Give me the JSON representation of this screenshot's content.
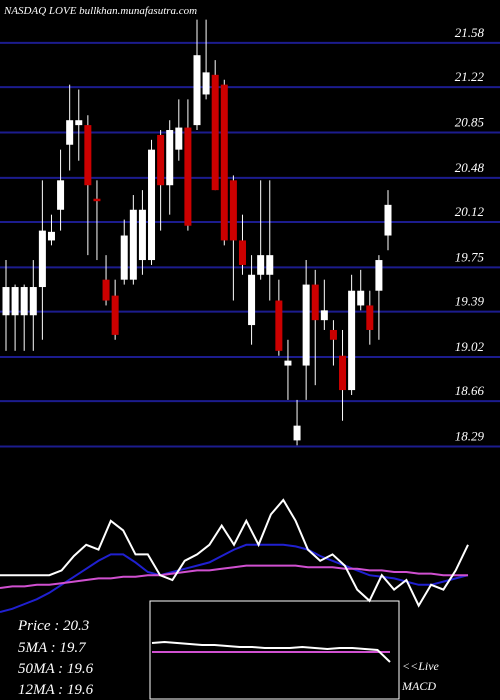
{
  "chart_data": {
    "type": "candlestick",
    "title": "NASDAQ LOVE bullkhan.munafasutra.com",
    "ylim": [
      18.18,
      21.93
    ],
    "yticks": [
      21.58,
      21.22,
      20.85,
      20.48,
      20.12,
      19.75,
      19.39,
      19.02,
      18.66,
      18.29
    ],
    "grid": true,
    "grid_color": "#1c1c8e",
    "up_color": "#ffffff",
    "down_color": "#cc0000",
    "open": [
      19.36,
      19.36,
      19.36,
      19.36,
      19.59,
      19.97,
      20.22,
      20.75,
      20.91,
      20.91,
      20.31,
      19.65,
      19.52,
      19.65,
      19.65,
      19.81,
      19.81,
      20.83,
      20.42,
      20.71,
      20.89,
      20.91,
      21.16,
      21.32,
      21.24,
      20.46,
      19.97,
      19.28,
      19.69,
      19.69,
      19.48,
      18.95,
      18.34,
      18.95,
      19.61,
      19.32,
      19.24,
      19.03,
      18.75,
      19.44,
      19.44,
      19.56,
      20.01
    ],
    "high": [
      19.81,
      19.61,
      19.61,
      19.81,
      20.46,
      20.18,
      20.71,
      21.24,
      21.2,
      20.99,
      20.46,
      19.85,
      19.65,
      20.14,
      20.34,
      20.38,
      20.79,
      20.87,
      20.95,
      21.12,
      21.12,
      21.77,
      21.77,
      21.44,
      21.28,
      20.5,
      20.18,
      19.85,
      20.46,
      20.46,
      19.65,
      19.16,
      18.67,
      19.81,
      19.73,
      19.65,
      19.32,
      19.24,
      19.69,
      19.73,
      19.56,
      19.85,
      20.38
    ],
    "low": [
      19.07,
      19.07,
      19.07,
      19.07,
      19.16,
      19.93,
      20.05,
      20.54,
      20.62,
      19.85,
      19.81,
      19.44,
      19.16,
      19.61,
      19.61,
      19.69,
      19.77,
      20.05,
      20.18,
      20.62,
      20.05,
      20.87,
      21.12,
      20.38,
      19.93,
      19.48,
      19.69,
      19.12,
      19.65,
      19.48,
      19.03,
      18.67,
      18.3,
      18.67,
      18.79,
      19.24,
      18.95,
      18.5,
      18.71,
      19.4,
      19.12,
      19.16,
      19.89
    ],
    "close": [
      19.59,
      19.59,
      19.59,
      19.59,
      20.05,
      20.04,
      20.46,
      20.95,
      20.95,
      20.42,
      20.29,
      19.48,
      19.2,
      20.01,
      20.22,
      20.22,
      20.71,
      20.42,
      20.87,
      20.89,
      20.09,
      21.48,
      21.34,
      20.38,
      19.97,
      19.97,
      19.77,
      19.69,
      19.85,
      19.85,
      19.07,
      18.99,
      18.46,
      19.61,
      19.32,
      19.4,
      19.16,
      18.75,
      19.56,
      19.56,
      19.24,
      19.81,
      20.26
    ],
    "indicator": {
      "ylim": [
        0,
        100
      ],
      "series": [
        {
          "color": "#2020d0",
          "values": [
            5,
            7,
            10,
            13,
            17,
            22,
            27,
            32,
            37,
            41,
            41,
            36,
            30,
            28,
            30,
            32,
            34,
            36,
            40,
            44,
            47,
            47,
            47,
            47,
            46,
            44,
            40,
            37,
            34,
            31,
            28,
            27,
            26,
            24,
            22,
            22,
            24,
            26,
            28
          ]
        },
        {
          "color": "#d050d0",
          "values": [
            20,
            21,
            21,
            22,
            22,
            23,
            24,
            25,
            26,
            26,
            27,
            27,
            28,
            28,
            29,
            30,
            31,
            31,
            32,
            33,
            34,
            34,
            34,
            34,
            34,
            33,
            33,
            33,
            32,
            32,
            31,
            31,
            30,
            30,
            29,
            29,
            28,
            28,
            28
          ]
        },
        {
          "color": "#ffffff",
          "values": [
            28,
            28,
            28,
            28,
            28,
            31,
            40,
            47,
            44,
            62,
            56,
            41,
            41,
            28,
            25,
            37,
            41,
            47,
            59,
            47,
            62,
            47,
            66,
            75,
            62,
            44,
            37,
            41,
            34,
            19,
            12,
            28,
            19,
            25,
            9,
            22,
            19,
            31,
            47
          ]
        }
      ]
    },
    "macd": {
      "ylim": [
        0,
        100
      ],
      "series": [
        {
          "color": "#d050d0",
          "values": [
            48,
            48,
            48,
            48,
            48,
            48,
            48,
            48,
            48,
            48,
            48,
            48,
            48,
            48,
            48,
            48,
            48,
            48,
            48,
            48
          ]
        },
        {
          "color": "#ffffff",
          "values": [
            57,
            58,
            57,
            56,
            55,
            55,
            54,
            53,
            53,
            52,
            52,
            52,
            53,
            52,
            51,
            52,
            52,
            51,
            50,
            38
          ]
        }
      ]
    },
    "info": [
      "Price   : 20.3",
      "5MA : 19.7",
      "50MA : 19.6",
      "12MA : 19.6"
    ],
    "live": "<<Live",
    "macd_label": "MACD"
  }
}
